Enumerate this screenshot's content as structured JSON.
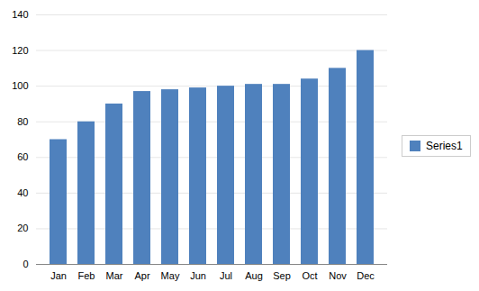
{
  "chart_data": {
    "type": "bar",
    "categories": [
      "Jan",
      "Feb",
      "Mar",
      "Apr",
      "May",
      "Jun",
      "Jul",
      "Aug",
      "Sep",
      "Oct",
      "Nov",
      "Dec"
    ],
    "series": [
      {
        "name": "Series1",
        "color": "#4F81BD",
        "values": [
          70,
          80,
          90,
          97,
          98,
          99,
          100,
          101,
          101,
          104,
          110,
          120
        ]
      }
    ],
    "ylim": [
      0,
      140
    ],
    "yticks": [
      0,
      20,
      40,
      60,
      80,
      100,
      120,
      140
    ],
    "grid": true,
    "legend": "right"
  }
}
